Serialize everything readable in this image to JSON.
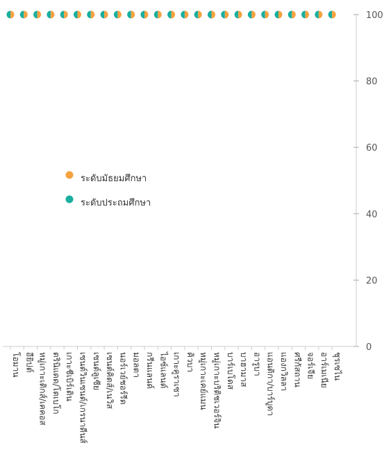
{
  "chart_data": {
    "type": "scatter",
    "categories": [
      "โอมาน",
      "อียิปต์",
      "หมู่เกาะเติกส์/เคคอส",
      "ตรินิแดด/โตเบโก",
      "เกาะชีเบิร์เติน",
      "เซนต์วินเซนต์/เกรนาดีนส์",
      "เซนต์ลูเซีย",
      "เซนต์คิตส์/เนวิส",
      "นอร์เวย์ชอร์รีด",
      "มอลตา",
      "กรีนแลนด์",
      "ไอซ์แลนด์",
      "เกาะคูราเซา",
      "คิวบา",
      "หมู่เกาะเคย์แมน",
      "หมู่เกาะบริติชเวอร์จิน",
      "บาร์เบโดส",
      "บาฮามาส",
      "อารูบา",
      "แอนติกา/บาร์บูดา",
      "แองกวิลลา",
      "ศรีกัสถาน",
      "จอร์เจีย",
      "อาร์เมเนีย",
      "ชุรเซไน"
    ],
    "series": [
      {
        "name": "ระดับมัธยมศึกษา",
        "color": "#f4a340",
        "values": [
          100,
          100,
          100,
          100,
          100,
          100,
          100,
          100,
          100,
          100,
          100,
          100,
          100,
          100,
          100,
          100,
          100,
          100,
          100,
          100,
          100,
          100,
          100,
          100,
          100
        ]
      },
      {
        "name": "ระดับประถมศึกษา",
        "color": "#1aae9f",
        "values": [
          100,
          100,
          100,
          100,
          100,
          100,
          100,
          100,
          100,
          100,
          100,
          100,
          100,
          100,
          100,
          100,
          100,
          100,
          100,
          100,
          100,
          100,
          100,
          100,
          100
        ]
      }
    ],
    "ylim": [
      0,
      100
    ],
    "yticks": [
      0,
      20,
      40,
      60,
      80,
      100
    ],
    "legend_position": "middle-left",
    "grid": false
  }
}
